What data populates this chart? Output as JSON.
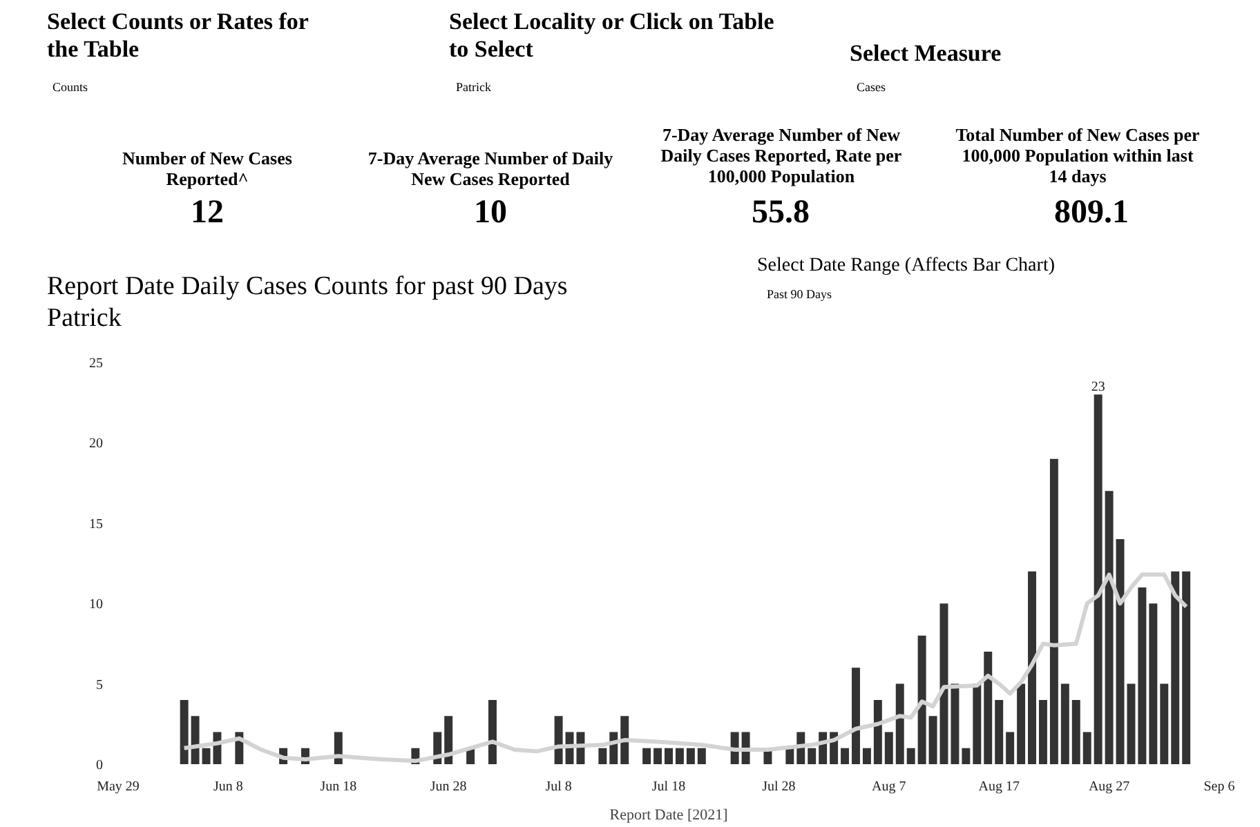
{
  "chart_data": {
    "type": "bar",
    "title": "Report Date Daily Cases Counts for past 90 Days",
    "subtitle": "Patrick",
    "xlabel": "Report Date [2021]",
    "annotations": [
      "Select Counts or Rates for the Table",
      "Counts",
      "Select Locality or Click on Table to Select",
      "Patrick",
      "Select Measure",
      "Cases",
      "Number of New Cases Reported^",
      "12",
      "7-Day Average Number of Daily New Cases Reported",
      "10",
      "7-Day Average Number of New Daily Cases Reported, Rate per 100,000 Population",
      "55.8",
      "Total Number of New Cases per 100,000 Population within last 14 days",
      "809.1",
      "Select Date Range (Affects Bar Chart)",
      "Past 90 Days",
      {
        "text": "23",
        "x": "2021-08-26",
        "y": 23
      }
    ],
    "series": [
      {
        "color": "#333333",
        "x": [
          "2021-06-04",
          "2021-06-05",
          "2021-06-06",
          "2021-06-07",
          "2021-06-09",
          "2021-06-13",
          "2021-06-15",
          "2021-06-18",
          "2021-06-25",
          "2021-06-27",
          "2021-06-28",
          "2021-06-30",
          "2021-07-02",
          "2021-07-08",
          "2021-07-09",
          "2021-07-10",
          "2021-07-12",
          "2021-07-13",
          "2021-07-14",
          "2021-07-16",
          "2021-07-17",
          "2021-07-18",
          "2021-07-19",
          "2021-07-20",
          "2021-07-21",
          "2021-07-24",
          "2021-07-25",
          "2021-07-27",
          "2021-07-29",
          "2021-07-30",
          "2021-07-31",
          "2021-08-01",
          "2021-08-02",
          "2021-08-03",
          "2021-08-04",
          "2021-08-05",
          "2021-08-06",
          "2021-08-07",
          "2021-08-08",
          "2021-08-09",
          "2021-08-10",
          "2021-08-11",
          "2021-08-12",
          "2021-08-13",
          "2021-08-14",
          "2021-08-15",
          "2021-08-16",
          "2021-08-17",
          "2021-08-18",
          "2021-08-19",
          "2021-08-20",
          "2021-08-21",
          "2021-08-22",
          "2021-08-23",
          "2021-08-24",
          "2021-08-25",
          "2021-08-26",
          "2021-08-27",
          "2021-08-28",
          "2021-08-29",
          "2021-08-30",
          "2021-08-31",
          "2021-09-01",
          "2021-09-02",
          "2021-09-03"
        ],
        "values": [
          4,
          3,
          1,
          2,
          2,
          1,
          1,
          2,
          1,
          2,
          3,
          1,
          4,
          3,
          2,
          2,
          1,
          2,
          3,
          1,
          1,
          1,
          1,
          1,
          1,
          2,
          2,
          1,
          1,
          2,
          1,
          2,
          2,
          1,
          6,
          1,
          4,
          2,
          5,
          1,
          8,
          3,
          10,
          5,
          1,
          5,
          7,
          4,
          2,
          5,
          12,
          4,
          19,
          5,
          4,
          2,
          23,
          17,
          14,
          5,
          11,
          10,
          5,
          12,
          12
        ]
      },
      {
        "type": "line",
        "color": "#d3d3d3",
        "x": [
          "2021-06-04",
          "2021-06-07",
          "2021-06-09",
          "2021-06-11",
          "2021-06-13",
          "2021-06-15",
          "2021-06-18",
          "2021-06-22",
          "2021-06-25",
          "2021-06-28",
          "2021-07-02",
          "2021-07-04",
          "2021-07-06",
          "2021-07-08",
          "2021-07-12",
          "2021-07-14",
          "2021-07-17",
          "2021-07-21",
          "2021-07-24",
          "2021-07-27",
          "2021-07-31",
          "2021-08-02",
          "2021-08-04",
          "2021-08-06",
          "2021-08-08",
          "2021-08-09",
          "2021-08-10",
          "2021-08-11",
          "2021-08-12",
          "2021-08-15",
          "2021-08-16",
          "2021-08-17",
          "2021-08-18",
          "2021-08-19",
          "2021-08-20",
          "2021-08-21",
          "2021-08-22",
          "2021-08-24",
          "2021-08-25",
          "2021-08-26",
          "2021-08-27",
          "2021-08-28",
          "2021-08-29",
          "2021-08-30",
          "2021-08-31",
          "2021-09-01",
          "2021-09-02",
          "2021-09-03"
        ],
        "values": [
          1,
          1.3,
          1.6,
          0.9,
          0.4,
          0.3,
          0.5,
          0.3,
          0.2,
          0.6,
          1.4,
          0.9,
          0.8,
          1.1,
          1.2,
          1.5,
          1.4,
          1.2,
          0.9,
          0.9,
          1.2,
          1.5,
          2.2,
          2.5,
          3,
          2.9,
          3.9,
          3.6,
          4.8,
          4.9,
          5.5,
          5,
          4.4,
          5.1,
          6.2,
          7.5,
          7.4,
          7.5,
          10,
          10.5,
          11.8,
          10,
          11,
          11.8,
          11.8,
          11.8,
          10.5,
          9.8
        ]
      }
    ],
    "xlim": [
      "2021-05-29",
      "2021-09-06"
    ],
    "xticks": [
      {
        "value": "2021-05-29",
        "label": "May 29"
      },
      {
        "value": "2021-06-08",
        "label": "Jun 8"
      },
      {
        "value": "2021-06-18",
        "label": "Jun 18"
      },
      {
        "value": "2021-06-28",
        "label": "Jun 28"
      },
      {
        "value": "2021-07-08",
        "label": "Jul 8"
      },
      {
        "value": "2021-07-18",
        "label": "Jul 18"
      },
      {
        "value": "2021-07-28",
        "label": "Jul 28"
      },
      {
        "value": "2021-08-07",
        "label": "Aug 7"
      },
      {
        "value": "2021-08-17",
        "label": "Aug 17"
      },
      {
        "value": "2021-08-27",
        "label": "Aug 27"
      },
      {
        "value": "2021-09-06",
        "label": "Sep 6"
      }
    ],
    "ylim": [
      0,
      25
    ],
    "yticks": [
      0,
      5,
      10,
      15,
      20,
      25
    ],
    "grid": false
  }
}
